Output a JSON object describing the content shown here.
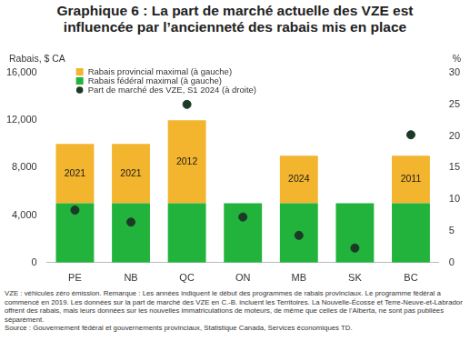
{
  "chart_data": {
    "type": "bar",
    "title": "Graphique 6 : La part de marché actuelle des VZE est influencée par l’ancienneté des rabais mis en place",
    "y_label": "Rabais, $ CA",
    "y2_label": "%",
    "categories": [
      "PE",
      "NB",
      "QC",
      "ON",
      "MB",
      "SK",
      "BC"
    ],
    "stacked": true,
    "series": [
      {
        "name": "Rabais fédéral maximal (à gauche)",
        "color": "#22b33c",
        "values": [
          5000,
          5000,
          5000,
          5000,
          5000,
          5000,
          5000
        ]
      },
      {
        "name": "Rabais provincial maximal (à gauche)",
        "color": "#f3b42e",
        "values": [
          5000,
          5000,
          7000,
          null,
          4000,
          null,
          4000
        ]
      },
      {
        "name": "Part de marché des VZE, S1 2024 (à droite)",
        "type": "scatter",
        "axis": "y2",
        "color": "#1c3b27",
        "marker": "circle",
        "values": [
          8.3,
          6.4,
          25,
          7.2,
          4.3,
          2.3,
          20.2
        ]
      }
    ],
    "annotations": [
      {
        "category": "PE",
        "text": "2021"
      },
      {
        "category": "NB",
        "text": "2021"
      },
      {
        "category": "QC",
        "text": "2012"
      },
      {
        "category": "MB",
        "text": "2024"
      },
      {
        "category": "BC",
        "text": "2011"
      }
    ],
    "ylim": [
      0,
      16000
    ],
    "yticks": [
      0,
      {
        "value": 4000,
        "label": "4,000"
      },
      {
        "value": 8000,
        "label": "8,000"
      },
      {
        "value": 12000,
        "label": "12,000"
      },
      {
        "value": 16000,
        "label": "16,000"
      }
    ],
    "y2lim": [
      0,
      30
    ],
    "y2ticks": [
      0,
      5,
      10,
      15,
      20,
      25,
      30
    ],
    "grid": false,
    "legend": "top-left",
    "notes": "VZE : véhicules zéro émission. Remarque : Les années indiquent le début des programmes de rabais provinciaux. Le programme fédéral a commencé en 2019. Les données sur la part de marché des VZE en C.-B. incluent les Territoires. La Nouvelle-Écosse et Terre-Neuve-et-Labrador offrent des rabais, mais leurs données sur les nouvelles immatriculations de moteurs, de même que celles de l’Alberta, ne sont pas publiées séparément.",
    "source": "Source : Gouvernement fédéral et gouvernements provinciaux, Statistique Canada, Services économiques TD."
  }
}
